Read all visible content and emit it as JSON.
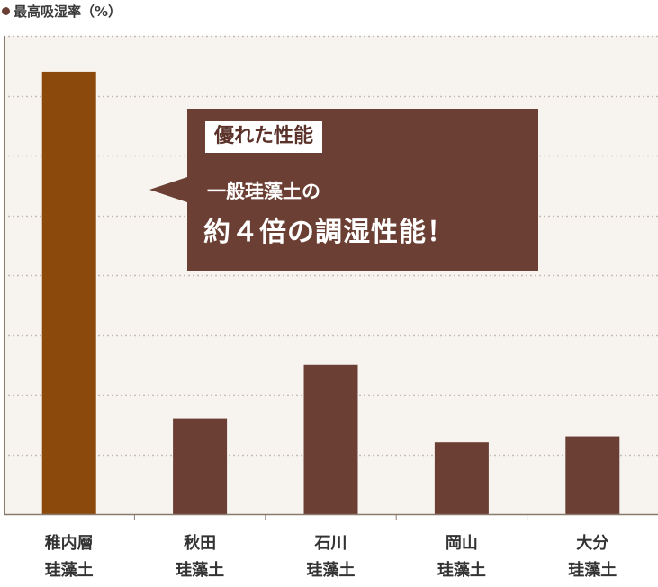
{
  "chart_data": {
    "type": "bar",
    "title": "最高吸湿率（%）",
    "categories": [
      [
        "稚内層",
        "珪藻土"
      ],
      [
        "秋田",
        "珪藻土"
      ],
      [
        "石川",
        "珪藻土"
      ],
      [
        "岡山",
        "珪藻土"
      ],
      [
        "大分",
        "珪藻土"
      ]
    ],
    "values": [
      74,
      16,
      25,
      12,
      13
    ],
    "highlight_index": 0,
    "ylim": [
      0,
      80
    ],
    "grid": true,
    "tick_labels_shown": false,
    "colors": {
      "highlight": "#8b4a0b",
      "bar": "#6b3f33",
      "grid": "#c8bcb0",
      "plot_bg": "#f7f4f0"
    },
    "annotation": {
      "tag": "優れた性能",
      "line1": "一般珪藻土の",
      "line2": "約４倍の調湿性能！"
    }
  }
}
